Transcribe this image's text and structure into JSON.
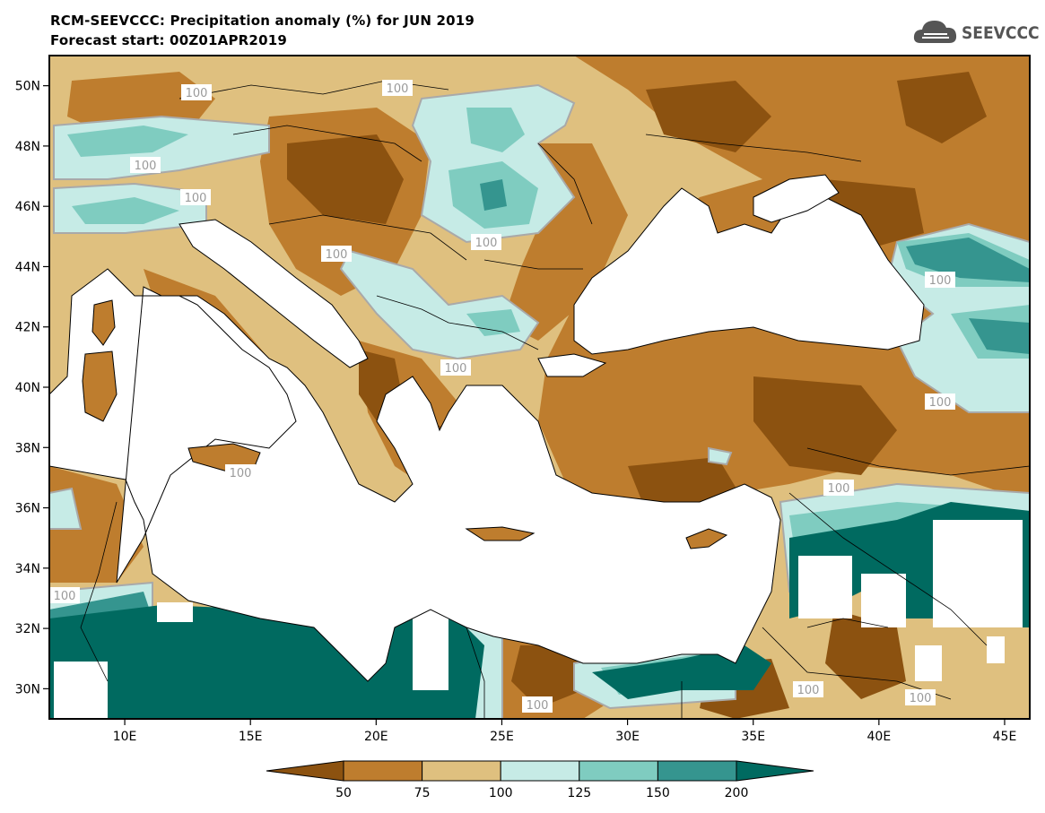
{
  "header": {
    "title_line1": "RCM-SEEVCCC: Precipitation anomaly (%) for JUN 2019",
    "title_line2": "Forecast start: 00Z01APR2019"
  },
  "logo": {
    "icon": "cloud-icon",
    "text": "SEEVCCC"
  },
  "map": {
    "lon_range": [
      7,
      46
    ],
    "lat_range": [
      29,
      51
    ],
    "lat_ticks": [
      {
        "value": 50,
        "label": "50N"
      },
      {
        "value": 48,
        "label": "48N"
      },
      {
        "value": 46,
        "label": "46N"
      },
      {
        "value": 44,
        "label": "44N"
      },
      {
        "value": 42,
        "label": "42N"
      },
      {
        "value": 40,
        "label": "40N"
      },
      {
        "value": 38,
        "label": "38N"
      },
      {
        "value": 36,
        "label": "36N"
      },
      {
        "value": 34,
        "label": "34N"
      },
      {
        "value": 32,
        "label": "32N"
      },
      {
        "value": 30,
        "label": "30N"
      }
    ],
    "lon_ticks": [
      {
        "value": 10,
        "label": "10E"
      },
      {
        "value": 15,
        "label": "15E"
      },
      {
        "value": 20,
        "label": "20E"
      },
      {
        "value": 25,
        "label": "25E"
      },
      {
        "value": 30,
        "label": "30E"
      },
      {
        "value": 35,
        "label": "35E"
      },
      {
        "value": 40,
        "label": "40E"
      },
      {
        "value": 45,
        "label": "45E"
      }
    ],
    "contour_label": "100"
  },
  "colorbar": {
    "levels": [
      "50",
      "75",
      "100",
      "125",
      "150",
      "200"
    ],
    "colors": {
      "below_50": "#8c5210",
      "c50_75": "#be7d2e",
      "c75_100": "#dfc07f",
      "c100_125": "#c6ebe6",
      "c125_150": "#7fccc0",
      "c150_200": "#35958f",
      "above_200": "#006a60"
    }
  }
}
